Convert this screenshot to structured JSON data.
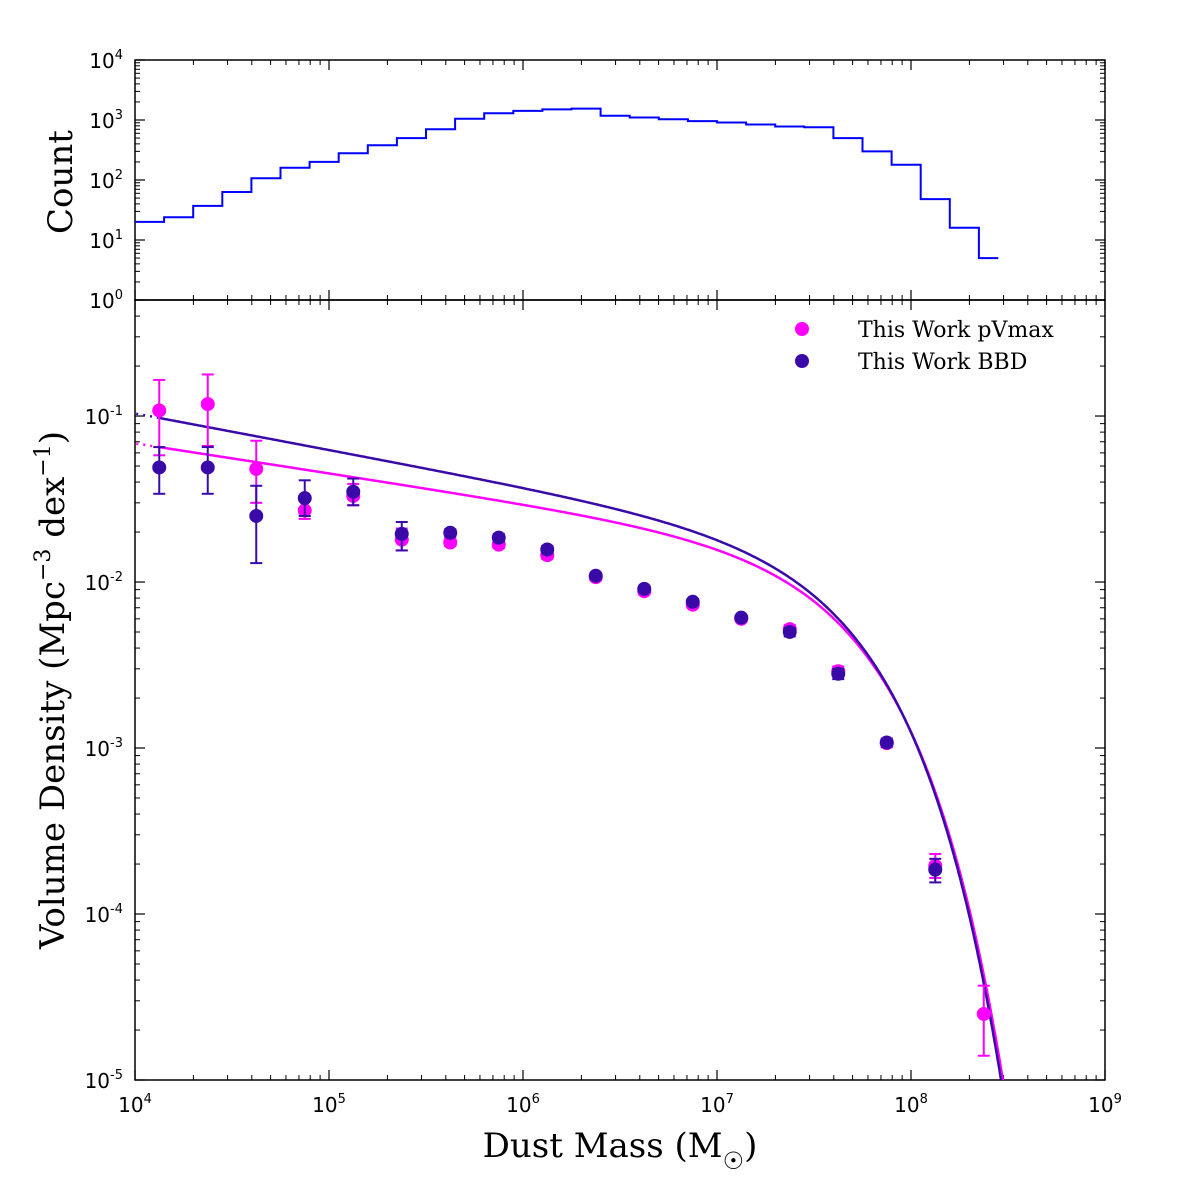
{
  "chart_data": [
    {
      "type": "step",
      "title": "",
      "ylabel": "Count",
      "xscale": "log",
      "yscale": "log",
      "xlim": [
        10000,
        1000000000
      ],
      "ylim": [
        1,
        10000
      ],
      "y_ticks": [
        {
          "base": "10",
          "exp": "0"
        },
        {
          "base": "10",
          "exp": "1"
        },
        {
          "base": "10",
          "exp": "2"
        },
        {
          "base": "10",
          "exp": "3"
        },
        {
          "base": "10",
          "exp": "4"
        }
      ],
      "series": [
        {
          "name": "histogram",
          "color": "#0000ff",
          "log_edges": [
            4.0,
            4.15,
            4.3,
            4.45,
            4.6,
            4.75,
            4.9,
            5.05,
            5.2,
            5.35,
            5.5,
            5.65,
            5.8,
            5.95,
            6.1,
            6.25,
            6.4,
            6.55,
            6.7,
            6.85,
            7.0,
            7.15,
            7.3,
            7.45,
            7.6,
            7.75,
            7.9,
            8.05,
            8.2,
            8.35,
            8.45
          ],
          "counts": [
            20,
            24,
            37,
            63,
            107,
            160,
            200,
            280,
            380,
            500,
            700,
            1050,
            1300,
            1420,
            1500,
            1550,
            1180,
            1100,
            1030,
            960,
            910,
            840,
            780,
            760,
            500,
            300,
            180,
            48,
            16,
            5
          ]
        }
      ]
    },
    {
      "type": "scatter",
      "xlabel": {
        "text": "Dust Mass (M",
        "sub": "☉",
        "close": ")"
      },
      "ylabel": {
        "text": "Volume Density (Mpc",
        "sup1": "−3",
        "mid": " dex",
        "sup2": "−1",
        "close": ")"
      },
      "xscale": "log",
      "yscale": "log",
      "xlim": [
        10000,
        1000000000
      ],
      "ylim": [
        1e-05,
        0.5
      ],
      "x_ticks": [
        {
          "base": "10",
          "exp": "4"
        },
        {
          "base": "10",
          "exp": "5"
        },
        {
          "base": "10",
          "exp": "6"
        },
        {
          "base": "10",
          "exp": "7"
        },
        {
          "base": "10",
          "exp": "8"
        },
        {
          "base": "10",
          "exp": "9"
        }
      ],
      "y_ticks": [
        {
          "base": "10",
          "exp": "-5"
        },
        {
          "base": "10",
          "exp": "-4"
        },
        {
          "base": "10",
          "exp": "-3"
        },
        {
          "base": "10",
          "exp": "-2"
        },
        {
          "base": "10",
          "exp": "-1"
        }
      ],
      "legend_position": "top-right",
      "series": [
        {
          "name": "This Work pVmax",
          "color": "#ff00ff",
          "log_x": [
            4.125,
            4.375,
            4.625,
            4.875,
            5.125,
            5.375,
            5.625,
            5.875,
            6.125,
            6.375,
            6.625,
            6.875,
            7.125,
            7.375,
            7.625,
            7.875,
            8.125,
            8.375
          ],
          "y": [
            0.108,
            0.118,
            0.048,
            0.027,
            0.033,
            0.018,
            0.0173,
            0.0168,
            0.0145,
            0.0107,
            0.0088,
            0.0073,
            0.006,
            0.0052,
            0.0029,
            0.00107,
            0.000195,
            2.5e-05
          ],
          "err_low": [
            0.05,
            0.052,
            0.018,
            0.003,
            0.004,
            0.0025,
            0.0008,
            0.0008,
            0.0007,
            0.0005,
            0.0004,
            0.0003,
            0.0002,
            0.0003,
            0.0002,
            6e-05,
            3e-05,
            1.1e-05
          ],
          "err_high": [
            0.057,
            0.06,
            0.023,
            0.004,
            0.006,
            0.003,
            0.001,
            0.001,
            0.0008,
            0.0005,
            0.0004,
            0.0003,
            0.0002,
            0.0003,
            0.0002,
            6e-05,
            3.5e-05,
            1.2e-05
          ]
        },
        {
          "name": "This Work BBD",
          "color": "#3a0aa8",
          "log_x": [
            4.125,
            4.375,
            4.625,
            4.875,
            5.125,
            5.375,
            5.625,
            5.875,
            6.125,
            6.375,
            6.625,
            6.875,
            7.125,
            7.375,
            7.625,
            7.875,
            8.125
          ],
          "y": [
            0.049,
            0.049,
            0.025,
            0.032,
            0.035,
            0.0195,
            0.0198,
            0.0185,
            0.0157,
            0.0109,
            0.0091,
            0.0076,
            0.0061,
            0.005,
            0.0028,
            0.00108,
            0.000185
          ],
          "err_low": [
            0.015,
            0.015,
            0.012,
            0.007,
            0.006,
            0.004,
            0.001,
            0.001,
            0.0008,
            0.0005,
            0.0004,
            0.0003,
            0.0002,
            0.0003,
            0.0002,
            6e-05,
            3e-05
          ],
          "err_high": [
            0.016,
            0.016,
            0.013,
            0.009,
            0.007,
            0.0035,
            0.001,
            0.001,
            0.0008,
            0.0005,
            0.0004,
            0.0003,
            0.0002,
            0.0003,
            0.0002,
            6e-05,
            3e-05
          ]
        }
      ],
      "fits": [
        {
          "name": "pVmax fit",
          "color": "#ff00ff",
          "phi_star": 0.0066,
          "log_m_star": 7.63,
          "alpha": -1.18,
          "solid_from_log_x": 4.125,
          "dotted_from_log_x": 3.9
        },
        {
          "name": "BBD fit",
          "color": "#3a0aa8",
          "phi_star": 0.0072,
          "log_m_star": 7.62,
          "alpha": -1.22,
          "solid_from_log_x": 4.125,
          "dotted_from_log_x": 3.9
        }
      ]
    }
  ]
}
